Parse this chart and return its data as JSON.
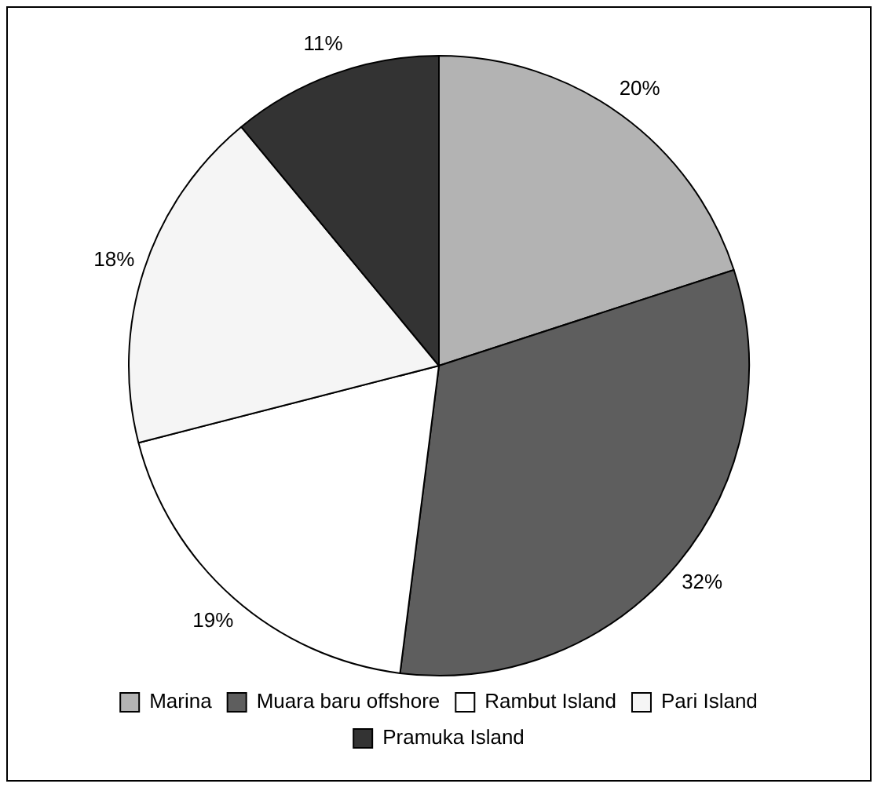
{
  "chart_data": {
    "type": "pie",
    "categories": [
      "Marina",
      "Muara baru offshore",
      "Rambut Island",
      "Pari Island",
      "Pramuka Island"
    ],
    "values": [
      20,
      32,
      19,
      18,
      11
    ],
    "colors": [
      "#b3b3b3",
      "#5e5e5e",
      "#ffffff",
      "#f5f5f5",
      "#333333"
    ],
    "value_labels": [
      "20%",
      "32%",
      "19%",
      "18%",
      "11%"
    ],
    "legend": "bottom"
  }
}
